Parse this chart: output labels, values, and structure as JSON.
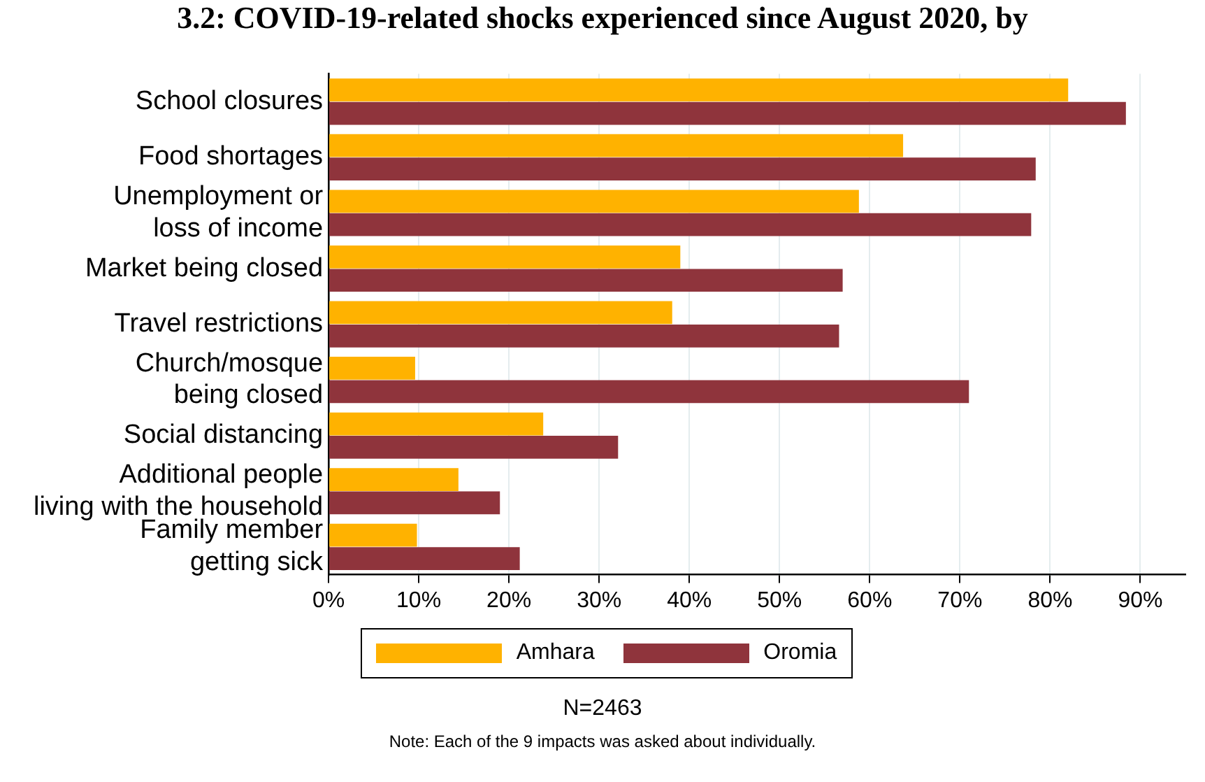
{
  "chart_data": {
    "type": "bar",
    "orientation": "horizontal",
    "title": "3.2: COVID-19-related shocks experienced since August 2020, by",
    "categories": [
      "School closures",
      "Food shortages",
      "Unemployment or\nloss of income",
      "Market being closed",
      "Travel restrictions",
      "Church/mosque\nbeing closed",
      "Social distancing",
      "Additional people\nliving with the household",
      "Family member\ngetting sick"
    ],
    "series": [
      {
        "name": "Amhara",
        "color": "#ffb200",
        "values": [
          82.0,
          63.7,
          58.8,
          39.0,
          38.1,
          9.6,
          23.8,
          14.4,
          9.8
        ]
      },
      {
        "name": "Oromia",
        "color": "#8f343c",
        "values": [
          88.4,
          78.4,
          77.9,
          57.0,
          56.6,
          71.0,
          32.1,
          19.0,
          21.2
        ]
      }
    ],
    "xlim": [
      0,
      95
    ],
    "xticks": [
      {
        "value": 0,
        "label": "0%"
      },
      {
        "value": 10,
        "label": "10%"
      },
      {
        "value": 20,
        "label": "20%"
      },
      {
        "value": 30,
        "label": "30%"
      },
      {
        "value": 40,
        "label": "40%"
      },
      {
        "value": 50,
        "label": "50%"
      },
      {
        "value": 60,
        "label": "60%"
      },
      {
        "value": 70,
        "label": "70%"
      },
      {
        "value": 80,
        "label": "80%"
      },
      {
        "value": 90,
        "label": "90%"
      }
    ],
    "grid": "x",
    "legend": "bottom",
    "annotations": [
      "N=2463",
      "Note: Each of the 9 impacts was asked about individually."
    ]
  }
}
